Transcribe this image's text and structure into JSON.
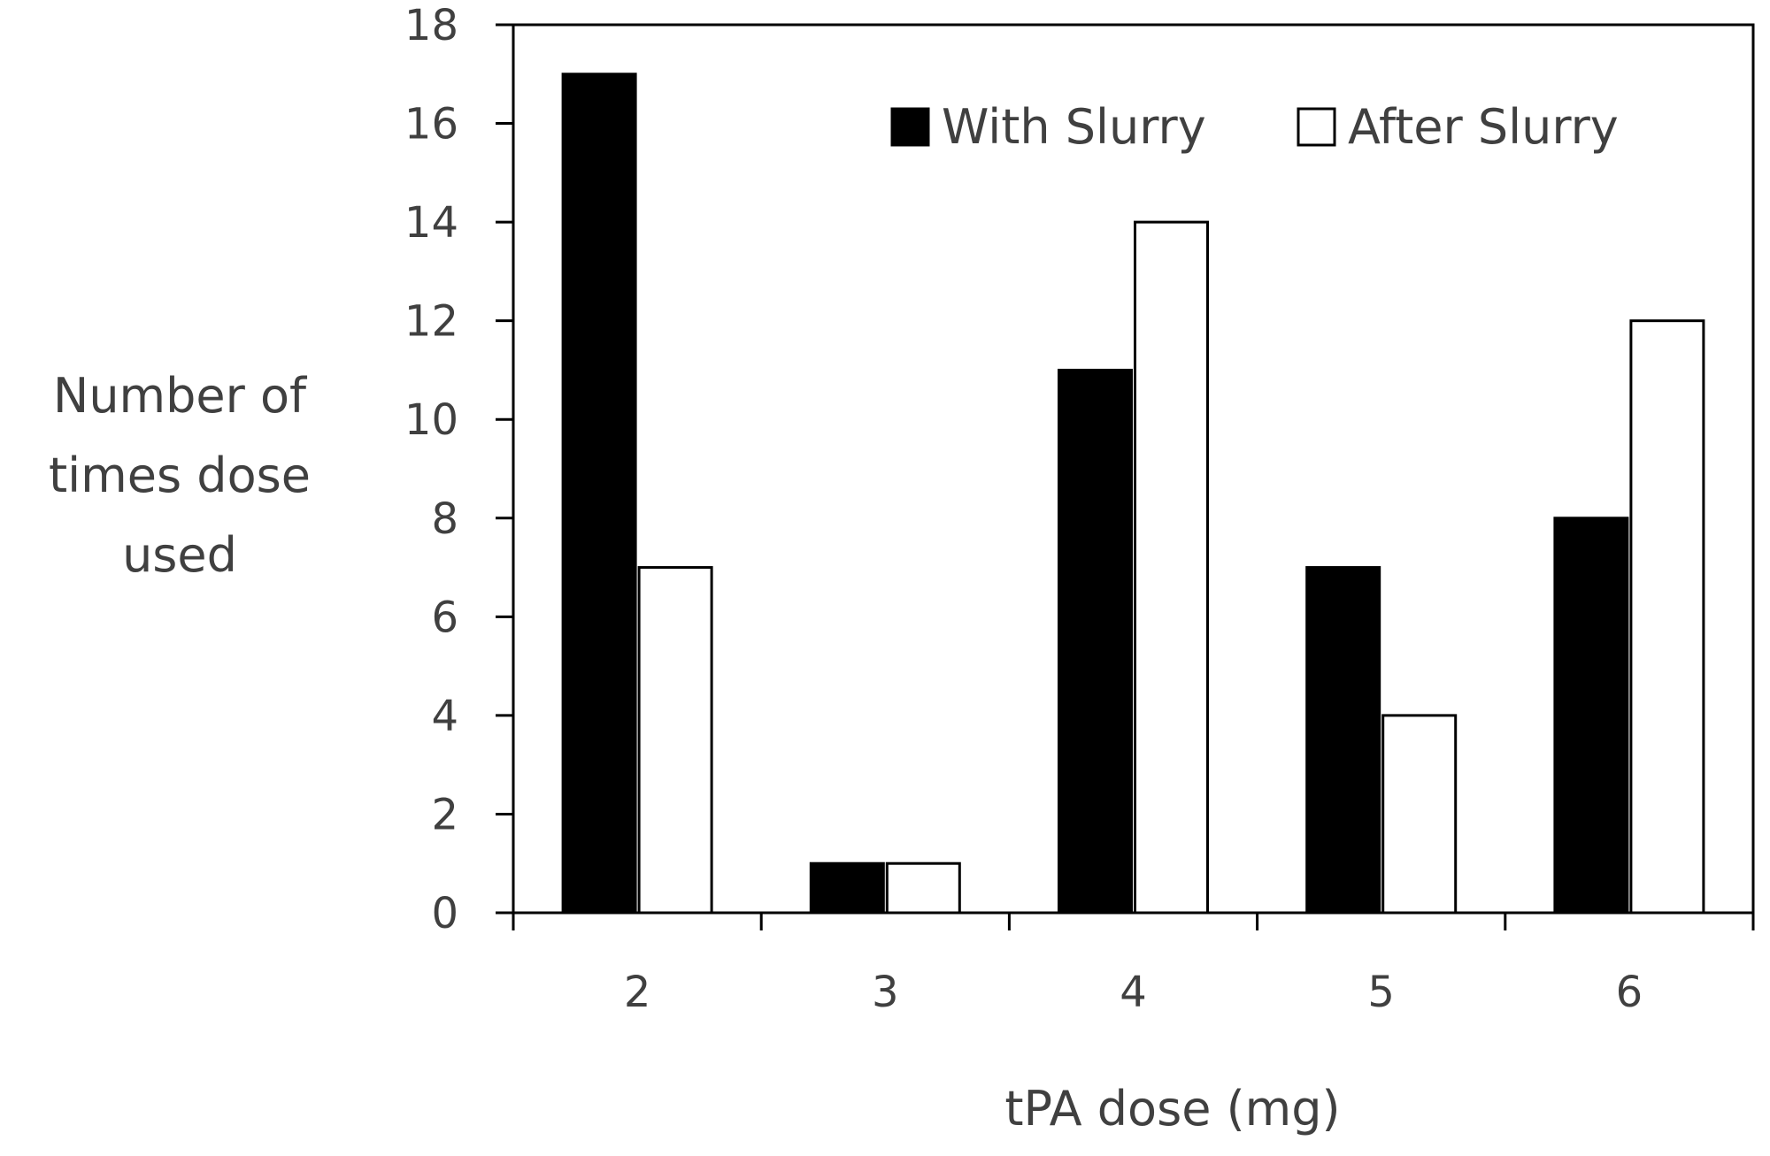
{
  "chart_data": {
    "type": "bar",
    "title": "",
    "xlabel": "tPA dose (mg)",
    "ylabel_lines": [
      "Number of",
      "times dose",
      "used"
    ],
    "categories": [
      "2",
      "3",
      "4",
      "5",
      "6"
    ],
    "series": [
      {
        "name": "With Slurry",
        "values": [
          17,
          1,
          11,
          7,
          8
        ],
        "fill": "#000000"
      },
      {
        "name": "After Slurry",
        "values": [
          7,
          1,
          14,
          4,
          12
        ],
        "fill": "#ffffff"
      }
    ],
    "ylim": [
      0,
      18
    ],
    "yticks": [
      0,
      2,
      4,
      6,
      8,
      10,
      12,
      14,
      16,
      18
    ],
    "grid": false,
    "legend_position": "top-right"
  }
}
